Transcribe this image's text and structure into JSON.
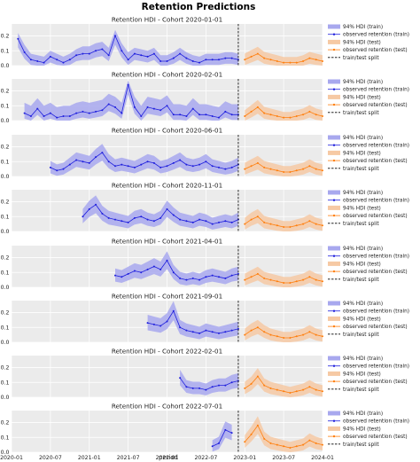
{
  "title": "Retention Predictions",
  "xlabel": "period",
  "legend": {
    "hdi_train": "94% HDI (train)",
    "obs_train": "observed retention (train)",
    "hdi_test": "94% HDI (test)",
    "obs_test": "observed retention (test)",
    "split": "train/test split"
  },
  "colors": {
    "train": "#1f1fdd",
    "train_band": "#a8a8ee",
    "test": "#ff7f0e",
    "test_band": "#f6c9a4",
    "split": "#000000",
    "axes_bg": "#ebebeb",
    "grid": "#ffffff"
  },
  "chart_data": {
    "type": "line",
    "x_ticks": [
      "2020-01",
      "2020-07",
      "2021-01",
      "2021-07",
      "2022-01",
      "2022-07",
      "2023-01",
      "2023-07",
      "2024-01"
    ],
    "y_ticks": [
      "0.0",
      "0.1",
      "0.2"
    ],
    "ylim": [
      0,
      0.28
    ],
    "xlim": [
      "2020-01",
      "2024-01"
    ],
    "split": "2022-12",
    "grid": true,
    "legend_position": "outside right",
    "panels": [
      {
        "title": "Retention HDI - Cohort 2020-01-01",
        "train": [
          "2020-02",
          [
            0.18,
            0.09,
            0.04,
            0.03,
            0.02,
            0.06,
            0.04,
            0.02,
            0.04,
            0.07,
            0.08,
            0.08,
            0.1,
            0.11,
            0.07,
            0.2,
            0.1,
            0.04,
            0.08,
            0.07,
            0.06,
            0.08,
            0.03,
            0.03,
            0.05,
            0.08,
            0.05,
            0.03,
            0.02,
            0.04,
            0.04,
            0.04,
            0.05,
            0.05,
            0.04
          ]
        ],
        "train_hi": [
          0.22,
          0.14,
          0.08,
          0.07,
          0.06,
          0.1,
          0.08,
          0.06,
          0.08,
          0.11,
          0.13,
          0.13,
          0.15,
          0.16,
          0.12,
          0.24,
          0.15,
          0.09,
          0.12,
          0.11,
          0.1,
          0.12,
          0.07,
          0.07,
          0.09,
          0.12,
          0.09,
          0.07,
          0.06,
          0.08,
          0.08,
          0.08,
          0.09,
          0.09,
          0.08
        ],
        "test": [
          "2023-01",
          [
            0.04,
            0.06,
            0.08,
            0.05,
            0.04,
            0.03,
            0.02,
            0.02,
            0.02,
            0.03,
            0.05,
            0.04,
            0.03
          ]
        ]
      },
      {
        "title": "Retention HDI - Cohort 2020-02-01",
        "train": [
          "2020-03",
          [
            0.05,
            0.03,
            0.08,
            0.03,
            0.05,
            0.02,
            0.03,
            0.03,
            0.05,
            0.06,
            0.05,
            0.06,
            0.07,
            0.11,
            0.09,
            0.05,
            0.24,
            0.09,
            0.03,
            0.09,
            0.08,
            0.07,
            0.1,
            0.04,
            0.04,
            0.03,
            0.08,
            0.04,
            0.04,
            0.03,
            0.02,
            0.06,
            0.04,
            0.04
          ]
        ],
        "train_hi": [
          0.12,
          0.1,
          0.15,
          0.1,
          0.12,
          0.09,
          0.1,
          0.1,
          0.12,
          0.13,
          0.12,
          0.13,
          0.14,
          0.18,
          0.16,
          0.12,
          0.27,
          0.16,
          0.1,
          0.16,
          0.15,
          0.14,
          0.17,
          0.11,
          0.11,
          0.1,
          0.15,
          0.11,
          0.11,
          0.1,
          0.09,
          0.13,
          0.11,
          0.11
        ],
        "test": [
          "2023-01",
          [
            0.03,
            0.06,
            0.09,
            0.05,
            0.04,
            0.03,
            0.02,
            0.02,
            0.03,
            0.04,
            0.06,
            0.04,
            0.03
          ]
        ]
      },
      {
        "title": "Retention HDI - Cohort 2020-06-01",
        "train": [
          "2020-07",
          [
            0.06,
            0.04,
            0.05,
            0.08,
            0.11,
            0.1,
            0.09,
            0.13,
            0.16,
            0.1,
            0.07,
            0.08,
            0.07,
            0.06,
            0.08,
            0.1,
            0.09,
            0.06,
            0.07,
            0.09,
            0.11,
            0.08,
            0.07,
            0.08,
            0.1,
            0.07,
            0.06,
            0.05,
            0.06,
            0.08
          ]
        ],
        "test": [
          "2023-01",
          [
            0.05,
            0.07,
            0.09,
            0.06,
            0.05,
            0.04,
            0.03,
            0.03,
            0.04,
            0.05,
            0.07,
            0.05,
            0.04
          ]
        ]
      },
      {
        "title": "Retention HDI - Cohort 2020-11-01",
        "train": [
          "2020-12",
          [
            0.1,
            0.15,
            0.18,
            0.12,
            0.09,
            0.08,
            0.07,
            0.06,
            0.09,
            0.1,
            0.08,
            0.07,
            0.09,
            0.15,
            0.11,
            0.08,
            0.07,
            0.06,
            0.08,
            0.07,
            0.05,
            0.06,
            0.07,
            0.06,
            0.08
          ]
        ],
        "test": [
          "2023-01",
          [
            0.05,
            0.08,
            0.1,
            0.06,
            0.05,
            0.04,
            0.03,
            0.03,
            0.04,
            0.05,
            0.07,
            0.05,
            0.04
          ]
        ]
      },
      {
        "title": "Retention HDI - Cohort 2021-04-01",
        "train": [
          "2021-05",
          [
            0.08,
            0.07,
            0.09,
            0.11,
            0.1,
            0.12,
            0.14,
            0.12,
            0.18,
            0.1,
            0.06,
            0.05,
            0.06,
            0.05,
            0.07,
            0.08,
            0.07,
            0.06,
            0.08,
            0.09
          ]
        ],
        "test": [
          "2023-01",
          [
            0.05,
            0.07,
            0.09,
            0.06,
            0.05,
            0.04,
            0.03,
            0.03,
            0.04,
            0.05,
            0.07,
            0.05,
            0.04
          ]
        ]
      },
      {
        "title": "Retention HDI - Cohort 2021-09-01",
        "train": [
          "2021-10",
          [
            0.13,
            0.12,
            0.11,
            0.14,
            0.21,
            0.1,
            0.08,
            0.07,
            0.06,
            0.08,
            0.07,
            0.06,
            0.07,
            0.08,
            0.09
          ]
        ],
        "test": [
          "2023-01",
          [
            0.05,
            0.08,
            0.1,
            0.07,
            0.05,
            0.04,
            0.03,
            0.03,
            0.04,
            0.05,
            0.07,
            0.05,
            0.04
          ]
        ]
      },
      {
        "title": "Retention HDI - Cohort 2022-02-01",
        "train": [
          "2022-03",
          [
            0.13,
            0.07,
            0.06,
            0.06,
            0.05,
            0.07,
            0.08,
            0.08,
            0.1,
            0.11
          ]
        ],
        "test": [
          "2023-01",
          [
            0.06,
            0.09,
            0.14,
            0.08,
            0.06,
            0.05,
            0.04,
            0.03,
            0.04,
            0.05,
            0.07,
            0.05,
            0.04
          ]
        ]
      },
      {
        "title": "Retention HDI - Cohort 2022-07-01",
        "train": [
          "2022-08",
          [
            0.04,
            0.06,
            0.15,
            0.13
          ]
        ],
        "test": [
          "2023-01",
          [
            0.07,
            0.12,
            0.18,
            0.09,
            0.06,
            0.05,
            0.04,
            0.03,
            0.04,
            0.05,
            0.08,
            0.06,
            0.05
          ]
        ]
      }
    ]
  }
}
